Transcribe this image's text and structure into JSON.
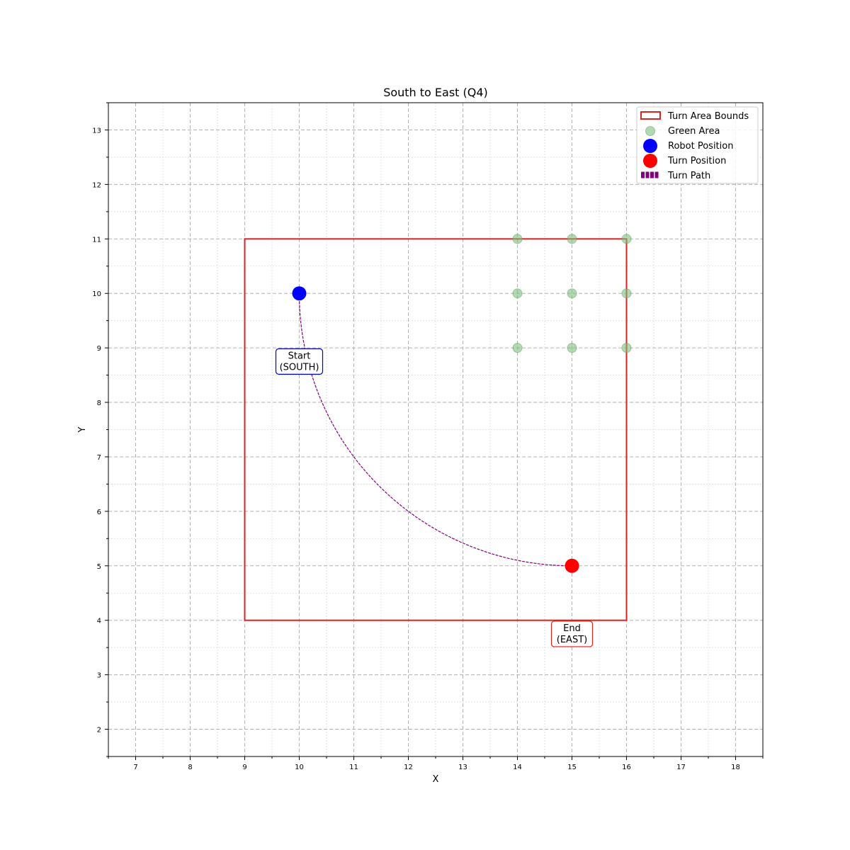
{
  "chart_data": {
    "type": "scatter",
    "title": "South to East (Q4)",
    "xlabel": "X",
    "ylabel": "Y",
    "xlim": [
      6.5,
      18.5
    ],
    "ylim": [
      1.5,
      13.5
    ],
    "xticks": [
      7,
      8,
      9,
      10,
      11,
      12,
      13,
      14,
      15,
      16,
      17,
      18
    ],
    "yticks": [
      2,
      3,
      4,
      5,
      6,
      7,
      8,
      9,
      10,
      11,
      12,
      13
    ],
    "grid": true,
    "legend_position": "top-right",
    "turn_area_bounds": {
      "x_min": 9,
      "x_max": 16,
      "y_min": 4,
      "y_max": 11
    },
    "green_area": [
      {
        "x": 14,
        "y": 11
      },
      {
        "x": 15,
        "y": 11
      },
      {
        "x": 16,
        "y": 11
      },
      {
        "x": 14,
        "y": 10
      },
      {
        "x": 15,
        "y": 10
      },
      {
        "x": 16,
        "y": 10
      },
      {
        "x": 14,
        "y": 9
      },
      {
        "x": 15,
        "y": 9
      },
      {
        "x": 16,
        "y": 9
      }
    ],
    "robot_position": {
      "x": 10,
      "y": 10
    },
    "turn_position": {
      "x": 15,
      "y": 5
    },
    "turn_path": {
      "start": {
        "x": 10,
        "y": 10
      },
      "end": {
        "x": 15,
        "y": 5
      },
      "center": {
        "x": 15,
        "y": 10
      }
    },
    "annotations": [
      {
        "text_lines": [
          "Start",
          "(SOUTH)"
        ],
        "x": 10,
        "y": 8.75,
        "color": "#0000cc"
      },
      {
        "text_lines": [
          "End",
          "(EAST)"
        ],
        "x": 15,
        "y": 3.75,
        "color": "#dd2222"
      }
    ],
    "legend": [
      {
        "label": "Turn Area Bounds",
        "marker": "rect"
      },
      {
        "label": "Green Area",
        "marker": "circle"
      },
      {
        "label": "Robot Position",
        "marker": "circle"
      },
      {
        "label": "Turn Position",
        "marker": "circle"
      },
      {
        "label": "Turn Path",
        "marker": "dotted-line"
      }
    ],
    "colors": {
      "bounds": "#dd2222",
      "green_area": "#7fbf7f",
      "robot": "#0000ff",
      "turn": "#ff0000",
      "path": "#800080",
      "grid_major": "#b0b0b0",
      "grid_minor": "#d0d0d0"
    }
  }
}
